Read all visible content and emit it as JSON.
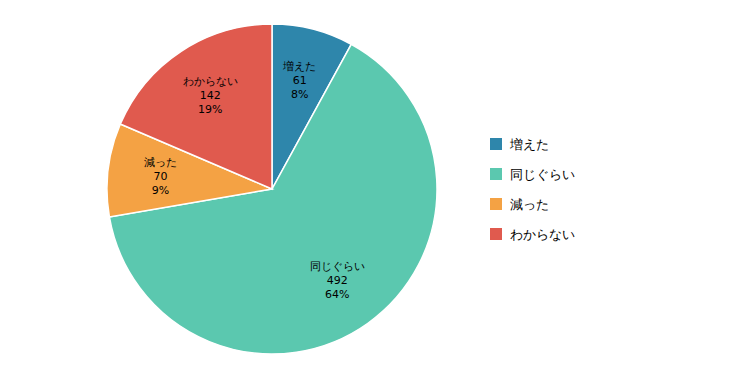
{
  "chart_data": {
    "type": "pie",
    "categories": [
      "増えた",
      "同じぐらい",
      "減った",
      "わからない"
    ],
    "values": [
      61,
      492,
      70,
      142
    ],
    "percents": [
      8,
      64,
      9,
      19
    ],
    "percent_labels": [
      "8%",
      "64%",
      "9%",
      "19%"
    ],
    "colors": [
      "#2e86ab",
      "#5bc8af",
      "#f4a244",
      "#e05a4e"
    ],
    "data_labels": true,
    "legend": "right"
  }
}
